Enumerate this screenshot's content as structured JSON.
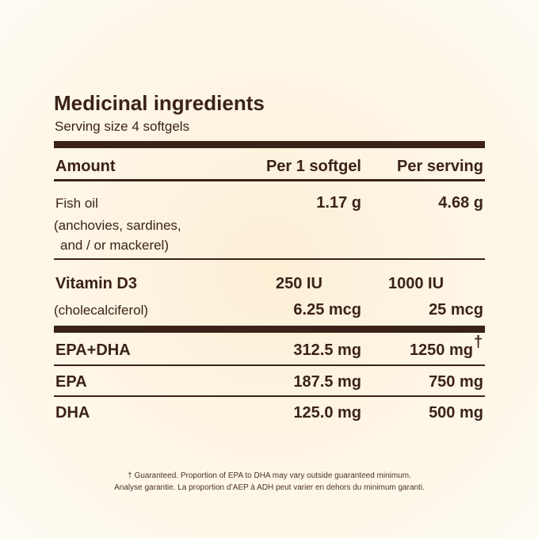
{
  "title": "Medicinal ingredients",
  "subtitle": "Serving size 4 softgels",
  "table": {
    "header": [
      "Amount",
      "Per 1 softgel",
      "Per serving"
    ],
    "rows": [
      {
        "name": "Fish oil",
        "notes": [
          "(anchovies, sardines,",
          "and / or mackerel)"
        ],
        "per_softgel": [
          "1.17 g"
        ],
        "per_serving": [
          "4.68 g"
        ]
      },
      {
        "name": "Vitamin D3",
        "notes": [
          "(cholecalciferol)"
        ],
        "per_softgel": [
          "250 IU",
          "6.25 mcg"
        ],
        "per_serving": [
          "1000 IU",
          "25 mcg"
        ]
      },
      {
        "name": "EPA+DHA",
        "per_softgel": [
          "312.5 mg"
        ],
        "per_serving": [
          "1250 mg"
        ],
        "mark": "†"
      },
      {
        "name": "EPA",
        "per_softgel": [
          "187.5 mg"
        ],
        "per_serving": [
          "750 mg"
        ]
      },
      {
        "name": "DHA",
        "per_softgel": [
          "125.0 mg"
        ],
        "per_serving": [
          "500 mg"
        ]
      }
    ]
  },
  "footnote": [
    "† Guaranteed. Proportion of EPA to DHA may vary outside guaranteed minimum.",
    "Analyse garantie. La proportion d’AEP à ADH peut varier en dehors du minimum garanti."
  ]
}
